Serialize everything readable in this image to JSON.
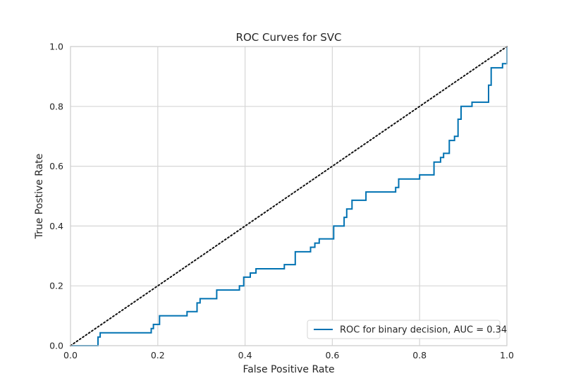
{
  "chart_data": {
    "type": "line",
    "title": "ROC Curves for SVC",
    "xlabel": "False Positive Rate",
    "ylabel": "True Postive Rate",
    "xlim": [
      0.0,
      1.0
    ],
    "ylim": [
      0.0,
      1.0
    ],
    "xticks": [
      "0.0",
      "0.2",
      "0.4",
      "0.6",
      "0.8",
      "1.0"
    ],
    "yticks": [
      "0.0",
      "0.2",
      "0.4",
      "0.6",
      "0.8",
      "1.0"
    ],
    "grid": true,
    "legend_position": "lower-right",
    "series": [
      {
        "name": "ROC for binary decision, AUC = 0.34",
        "color": "#0072b2",
        "style": "step",
        "x": [
          0.0,
          0.063,
          0.063,
          0.068,
          0.068,
          0.185,
          0.185,
          0.19,
          0.19,
          0.204,
          0.204,
          0.267,
          0.267,
          0.29,
          0.29,
          0.297,
          0.297,
          0.335,
          0.335,
          0.387,
          0.387,
          0.397,
          0.397,
          0.412,
          0.412,
          0.425,
          0.425,
          0.49,
          0.49,
          0.515,
          0.515,
          0.55,
          0.55,
          0.56,
          0.56,
          0.57,
          0.57,
          0.603,
          0.603,
          0.627,
          0.627,
          0.633,
          0.633,
          0.645,
          0.645,
          0.677,
          0.677,
          0.745,
          0.745,
          0.752,
          0.752,
          0.8,
          0.8,
          0.833,
          0.833,
          0.848,
          0.848,
          0.855,
          0.855,
          0.868,
          0.868,
          0.88,
          0.88,
          0.888,
          0.888,
          0.895,
          0.895,
          0.92,
          0.92,
          0.958,
          0.958,
          0.964,
          0.964,
          0.99,
          0.99,
          1.0,
          1.0
        ],
        "y": [
          0.0,
          0.0,
          0.029,
          0.029,
          0.043,
          0.043,
          0.057,
          0.057,
          0.071,
          0.071,
          0.1,
          0.1,
          0.114,
          0.114,
          0.143,
          0.143,
          0.157,
          0.157,
          0.186,
          0.186,
          0.2,
          0.2,
          0.229,
          0.229,
          0.243,
          0.243,
          0.257,
          0.257,
          0.271,
          0.271,
          0.314,
          0.314,
          0.329,
          0.329,
          0.343,
          0.343,
          0.357,
          0.357,
          0.4,
          0.4,
          0.429,
          0.429,
          0.457,
          0.457,
          0.486,
          0.486,
          0.514,
          0.514,
          0.529,
          0.529,
          0.557,
          0.557,
          0.571,
          0.571,
          0.614,
          0.614,
          0.629,
          0.629,
          0.643,
          0.643,
          0.686,
          0.686,
          0.7,
          0.7,
          0.757,
          0.757,
          0.8,
          0.8,
          0.814,
          0.814,
          0.871,
          0.871,
          0.929,
          0.929,
          0.943,
          0.943,
          1.0
        ]
      },
      {
        "name": "",
        "color": "#111111",
        "style": "dotted",
        "x": [
          0.0,
          1.0
        ],
        "y": [
          0.0,
          1.0
        ]
      }
    ]
  }
}
